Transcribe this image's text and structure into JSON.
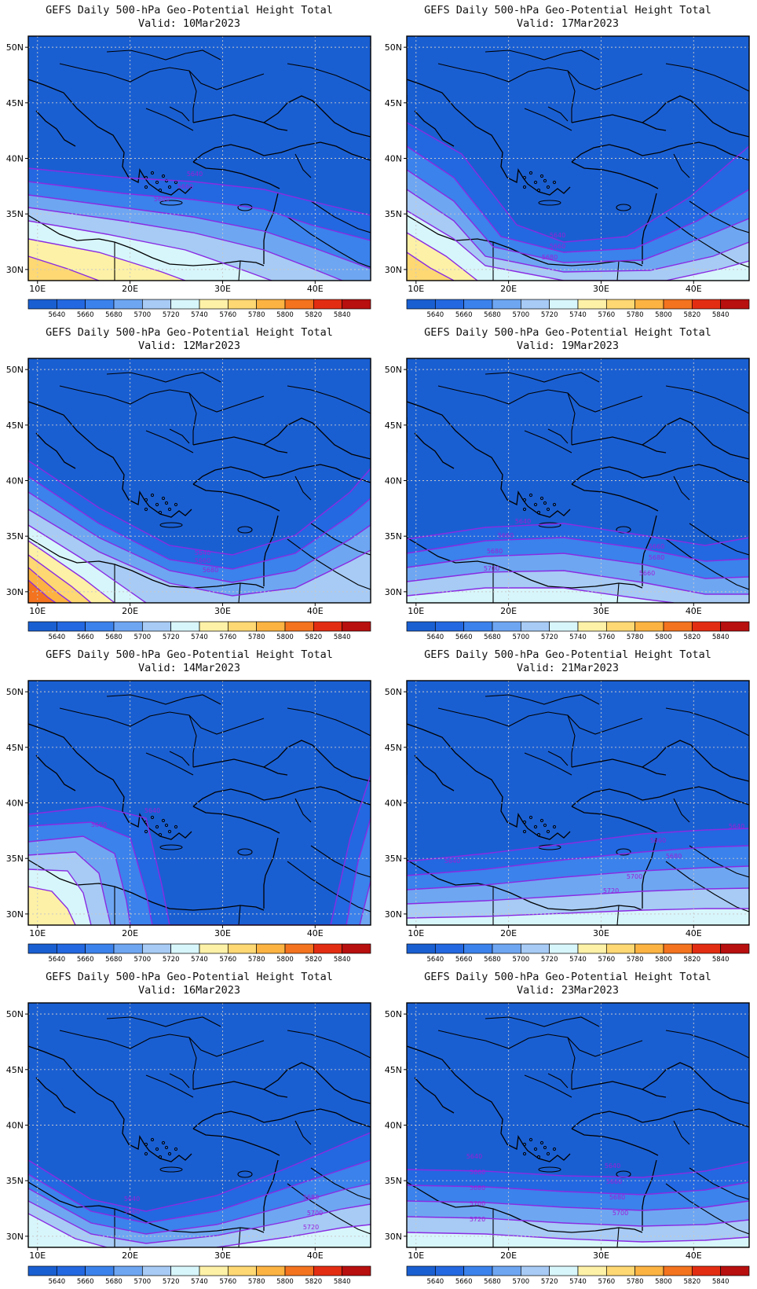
{
  "panel_title": "GEFS Daily 500-hPa Geo-Potential Height Total",
  "valid_prefix": "Valid:",
  "lat_labels": [
    "50N",
    "45N",
    "40N",
    "35N",
    "30N"
  ],
  "lon_labels": [
    "10E",
    "20E",
    "30E",
    "40E"
  ],
  "colorbar": {
    "labels": [
      "5640",
      "5660",
      "5680",
      "5700",
      "5720",
      "5740",
      "5760",
      "5780",
      "5800",
      "5820",
      "5840"
    ],
    "colors": [
      "#1a5fd2",
      "#2368e1",
      "#3b82ec",
      "#6ea6f2",
      "#a7cbf5",
      "#d7f6fb",
      "#fdf1a7",
      "#fdd873",
      "#fcb342",
      "#f3731e",
      "#e32d12",
      "#b80f0f"
    ]
  },
  "chart_data": [
    {
      "type": "heatmap",
      "valid": "10Mar2023",
      "contour_labels": [
        "5640",
        "5660",
        "5680"
      ]
    },
    {
      "type": "heatmap",
      "valid": "17Mar2023",
      "contour_labels": [
        "5640",
        "5660",
        "5680"
      ]
    },
    {
      "type": "heatmap",
      "valid": "12Mar2023",
      "contour_labels": [
        "5640",
        "5660",
        "5680"
      ]
    },
    {
      "type": "heatmap",
      "valid": "19Mar2023",
      "contour_labels": [
        "5640",
        "5660",
        "5680",
        "5700",
        "5660",
        "5680",
        "5660"
      ]
    },
    {
      "type": "heatmap",
      "valid": "14Mar2023",
      "contour_labels": [
        "5640",
        "5660"
      ]
    },
    {
      "type": "heatmap",
      "valid": "21Mar2023",
      "contour_labels": [
        "5640",
        "5660",
        "5680",
        "5700",
        "5720",
        "5640"
      ]
    },
    {
      "type": "heatmap",
      "valid": "16Mar2023",
      "contour_labels": [
        "5640",
        "5660",
        "5680",
        "5700",
        "5720"
      ]
    },
    {
      "type": "heatmap",
      "valid": "23Mar2023",
      "contour_labels": [
        "5640",
        "5660",
        "5680",
        "5700",
        "5720",
        "5640",
        "5660",
        "5680",
        "5700"
      ]
    }
  ]
}
